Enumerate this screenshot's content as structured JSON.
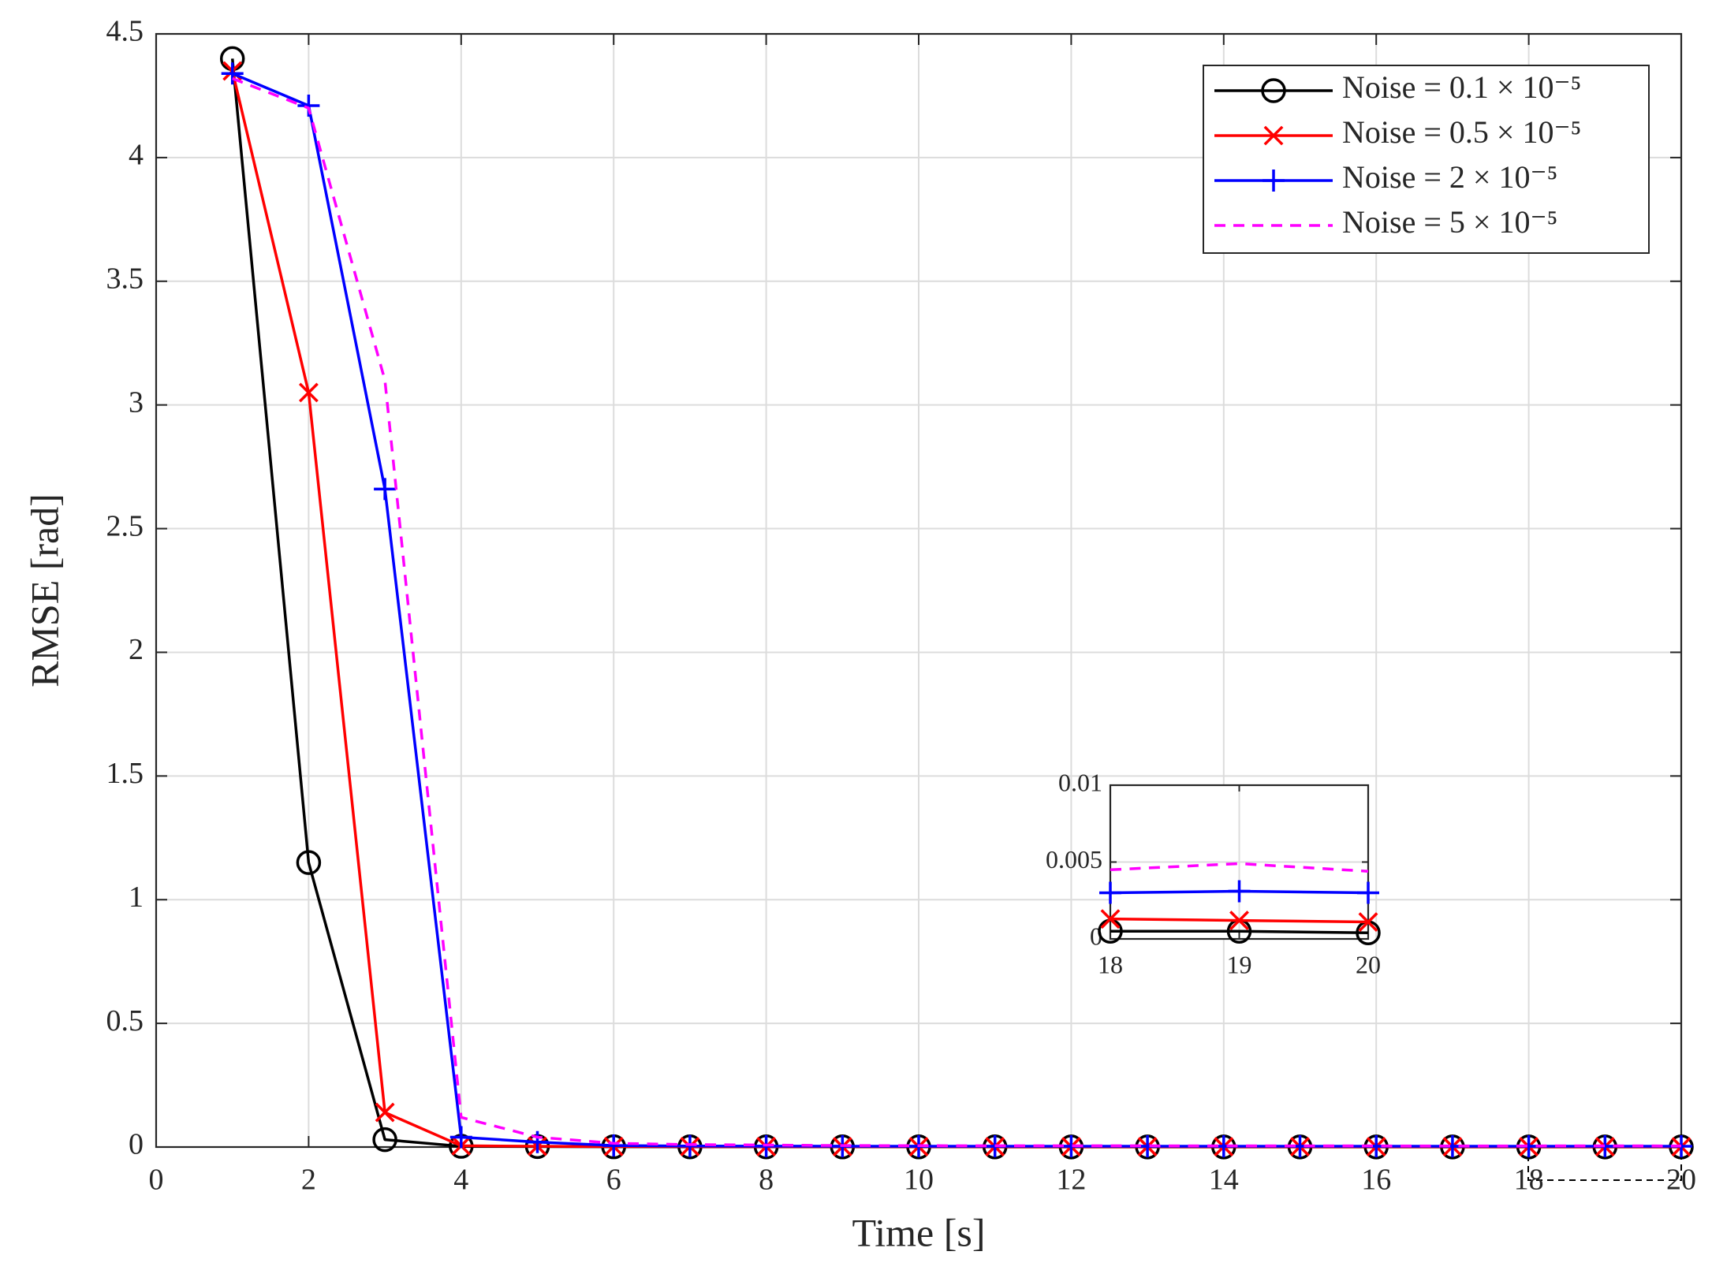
{
  "chart_data": {
    "type": "line",
    "xlabel": "Time [s]",
    "ylabel": "RMSE [rad]",
    "x": [
      1,
      2,
      3,
      4,
      5,
      6,
      7,
      8,
      9,
      10,
      11,
      12,
      13,
      14,
      15,
      16,
      17,
      18,
      19,
      20
    ],
    "series": [
      {
        "name": "Noise = 0.1 × 10⁻⁵",
        "color": "#000000",
        "marker": "circle",
        "dash": false,
        "values": [
          4.4,
          1.15,
          0.03,
          0.003,
          0.002,
          0.001,
          0.0008,
          0.0007,
          0.0006,
          0.0006,
          0.0006,
          0.0005,
          0.0005,
          0.0005,
          0.0005,
          0.0005,
          0.0005,
          0.0005,
          0.0005,
          0.0004
        ]
      },
      {
        "name": "Noise = 0.5 × 10⁻⁵",
        "color": "#ff0000",
        "marker": "x",
        "dash": false,
        "values": [
          4.35,
          3.05,
          0.14,
          0.005,
          0.003,
          0.002,
          0.0018,
          0.0016,
          0.0015,
          0.0014,
          0.0014,
          0.0013,
          0.0013,
          0.0013,
          0.0013,
          0.0012,
          0.0012,
          0.0013,
          0.0012,
          0.0011
        ]
      },
      {
        "name": "Noise = 2 × 10⁻⁵",
        "color": "#0000ff",
        "marker": "plus",
        "dash": false,
        "values": [
          4.34,
          4.21,
          2.66,
          0.04,
          0.02,
          0.006,
          0.004,
          0.0035,
          0.0033,
          0.0032,
          0.0031,
          0.0031,
          0.003,
          0.003,
          0.003,
          0.003,
          0.003,
          0.003,
          0.0031,
          0.003
        ]
      },
      {
        "name": "Noise = 5 × 10⁻⁵",
        "color": "#ff00ff",
        "marker": "none",
        "dash": true,
        "values": [
          4.32,
          4.2,
          3.1,
          0.12,
          0.04,
          0.015,
          0.01,
          0.008,
          0.006,
          0.0055,
          0.005,
          0.005,
          0.005,
          0.0048,
          0.0047,
          0.0046,
          0.0045,
          0.0045,
          0.0049,
          0.0044
        ]
      }
    ],
    "xlim": [
      0,
      20
    ],
    "xticks": [
      0,
      2,
      4,
      6,
      8,
      10,
      12,
      14,
      16,
      18,
      20
    ],
    "ylim": [
      0,
      4.5
    ],
    "yticks": [
      0,
      0.5,
      1,
      1.5,
      2,
      2.5,
      3,
      3.5,
      4,
      4.5
    ],
    "grid": true,
    "legend": "northeast",
    "inset": {
      "xlim": [
        18,
        20
      ],
      "xticks": [
        18,
        19,
        20
      ],
      "ylim": [
        0,
        0.01
      ],
      "yticks": [
        0,
        0.005,
        0.01
      ]
    }
  }
}
